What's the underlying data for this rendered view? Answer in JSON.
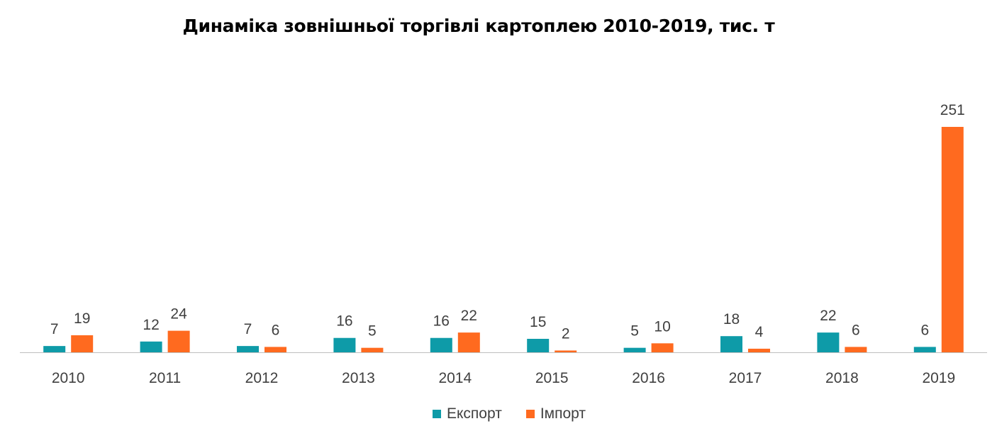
{
  "chart_data": {
    "type": "bar",
    "title": "Динаміка зовнішньої торгівлі картоплею 2010-2019, тис. т",
    "xlabel": "",
    "ylabel": "",
    "ylim": [
      0,
      251
    ],
    "grid": false,
    "legend_position": "bottom",
    "categories": [
      "2010",
      "2011",
      "2012",
      "2013",
      "2014",
      "2015",
      "2016",
      "2017",
      "2018",
      "2019"
    ],
    "series": [
      {
        "name": "Експорт",
        "color": "#0E9BA8",
        "values": [
          7,
          12,
          7,
          16,
          16,
          15,
          5,
          18,
          22,
          6
        ]
      },
      {
        "name": "Імпорт",
        "color": "#FF6A1F",
        "values": [
          19,
          24,
          6,
          5,
          22,
          2,
          10,
          4,
          6,
          251
        ]
      }
    ]
  }
}
